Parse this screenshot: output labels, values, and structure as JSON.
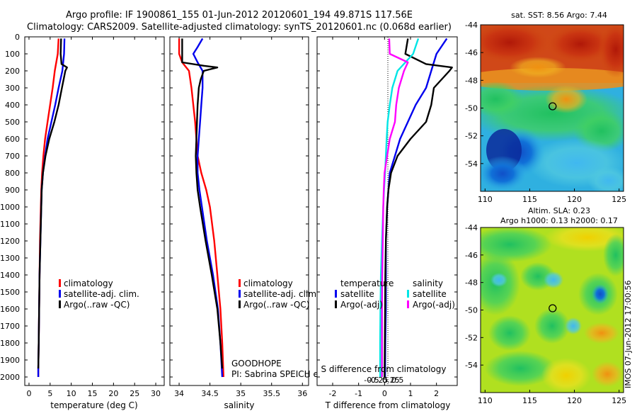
{
  "title": {
    "line1": "Argo profile: IF 1900861_155 01-Jun-2012 20120601_194 49.871S 117.56E",
    "line2": "Climatology: CARS2009. Satellite-adjusted climatology: synTS_20120601.nc (0.068d earlier)"
  },
  "depth_ticks": [
    "0",
    "100",
    "200",
    "300",
    "400",
    "500",
    "600",
    "700",
    "800",
    "900",
    "1000",
    "1100",
    "1200",
    "1300",
    "1400",
    "1500",
    "1600",
    "1700",
    "1800",
    "1900",
    "2000"
  ],
  "colors": {
    "climatology": "#ff0000",
    "satellite": "#0000ee",
    "argo": "#000000",
    "sal_satellite": "#00e5e5",
    "sal_argo": "#ff00ff"
  },
  "chart_data": [
    {
      "type": "line",
      "xlabel": "temperature (deg C)",
      "ylabel": "",
      "xlim": [
        -1,
        32
      ],
      "ylim": [
        2050,
        0
      ],
      "xticks": [
        "0",
        "5",
        "10",
        "15",
        "20",
        "25",
        "30"
      ],
      "legend": [
        "climatology",
        "satellite-adj. clim.",
        "Argo(..raw -QC)"
      ],
      "series": [
        {
          "name": "climatology",
          "depth": [
            10,
            100,
            200,
            300,
            400,
            500,
            600,
            700,
            800,
            900,
            1000,
            1200,
            1400,
            1600,
            1800,
            1950,
            2000
          ],
          "values": [
            7.0,
            6.8,
            6.1,
            5.6,
            5.0,
            4.4,
            3.8,
            3.4,
            3.1,
            2.9,
            2.8,
            2.6,
            2.5,
            2.4,
            2.3,
            2.2,
            2.2
          ]
        },
        {
          "name": "satellite-adj. clim.",
          "depth": [
            10,
            100,
            200,
            300,
            400,
            500,
            600,
            700,
            800,
            900,
            1000,
            1200,
            1400,
            1600,
            1800,
            1950,
            2000
          ],
          "values": [
            8.4,
            8.3,
            7.9,
            7.0,
            6.2,
            5.3,
            4.4,
            3.8,
            3.3,
            3.0,
            2.9,
            2.7,
            2.5,
            2.4,
            2.3,
            2.2,
            2.2
          ]
        },
        {
          "name": "Argo(..raw -QC)",
          "depth": [
            10,
            100,
            160,
            180,
            200,
            300,
            400,
            500,
            600,
            700,
            800,
            900,
            1000,
            1200,
            1400,
            1600,
            1800,
            1950
          ],
          "values": [
            7.6,
            7.5,
            7.7,
            9.0,
            8.6,
            7.8,
            7.0,
            6.0,
            4.8,
            3.9,
            3.3,
            3.0,
            2.9,
            2.7,
            2.5,
            2.4,
            2.3,
            2.2
          ]
        }
      ]
    },
    {
      "type": "line",
      "xlabel": "salinity",
      "ylabel": "",
      "xlim": [
        33.85,
        36.1
      ],
      "ylim": [
        2050,
        0
      ],
      "xticks": [
        "34",
        "34.5",
        "35",
        "35.5",
        "36"
      ],
      "legend": [
        "climatology",
        "satellite-adj. clim.",
        "Argo(..raw -QC)"
      ],
      "series": [
        {
          "name": "climatology",
          "depth": [
            10,
            100,
            150,
            200,
            300,
            400,
            500,
            600,
            700,
            800,
            900,
            1000,
            1200,
            1400,
            1600,
            1800,
            2000
          ],
          "values": [
            34.0,
            34.0,
            34.05,
            34.16,
            34.2,
            34.23,
            34.26,
            34.28,
            34.3,
            34.36,
            34.44,
            34.5,
            34.57,
            34.62,
            34.67,
            34.7,
            34.72
          ]
        },
        {
          "name": "satellite-adj. clim.",
          "depth": [
            10,
            60,
            100,
            150,
            200,
            300,
            400,
            500,
            600,
            700,
            800,
            900,
            1000,
            1200,
            1400,
            1600,
            1800,
            2000
          ],
          "values": [
            34.38,
            34.3,
            34.23,
            34.3,
            34.38,
            34.38,
            34.36,
            34.34,
            34.32,
            34.3,
            34.3,
            34.33,
            34.37,
            34.45,
            34.55,
            34.63,
            34.67,
            34.7
          ]
        },
        {
          "name": "Argo(..raw -QC)",
          "depth": [
            10,
            100,
            150,
            170,
            180,
            200,
            250,
            300,
            400,
            500,
            600,
            700,
            800,
            900,
            1000,
            1200,
            1400,
            1600,
            1800,
            1950
          ],
          "values": [
            34.05,
            34.05,
            34.05,
            34.4,
            34.62,
            34.4,
            34.35,
            34.32,
            34.3,
            34.29,
            34.28,
            34.27,
            34.28,
            34.3,
            34.34,
            34.43,
            34.53,
            34.62,
            34.67,
            34.7
          ]
        }
      ]
    },
    {
      "type": "line",
      "xlabel": "T difference from climatology",
      "xlabel_top": "S difference from climatology",
      "ylabel": "",
      "xlim": [
        -2.6,
        2.8
      ],
      "ylim": [
        2050,
        0
      ],
      "xticks": [
        "-2",
        "-1",
        "0",
        "1",
        "2"
      ],
      "xticks_sal": [
        "-0.5",
        "-0.25",
        "0",
        "0.25",
        "0.5"
      ],
      "legend_headers": [
        "temperature",
        "salinity"
      ],
      "legend": [
        "satellite",
        "Argo(-adj)",
        "satellite",
        "Argo(-adj)"
      ],
      "series": [
        {
          "name": "satellite",
          "depth": [
            10,
            100,
            200,
            300,
            400,
            500,
            600,
            700,
            800,
            900,
            1000,
            1200,
            1400,
            1600,
            1800,
            2000
          ],
          "values": [
            2.4,
            2.0,
            1.8,
            1.6,
            1.2,
            0.9,
            0.6,
            0.4,
            0.2,
            0.15,
            0.1,
            0.05,
            0.05,
            0.05,
            0.03,
            0.02
          ]
        },
        {
          "name": "Argo(-adj)",
          "depth": [
            10,
            100,
            160,
            180,
            200,
            300,
            400,
            500,
            600,
            700,
            800,
            900,
            1000,
            1200,
            1400,
            1600,
            1800,
            2000
          ],
          "values": [
            0.9,
            0.8,
            1.6,
            2.6,
            2.5,
            1.9,
            1.8,
            1.6,
            1.0,
            0.5,
            0.25,
            0.15,
            0.1,
            0.05,
            0.03,
            0.02,
            0.01,
            0.0
          ]
        },
        {
          "name": "satellite",
          "depth": [
            10,
            100,
            150,
            200,
            300,
            400,
            500,
            600,
            700,
            800,
            900,
            1000,
            1200,
            1400,
            1600,
            1800,
            2000
          ],
          "values": [
            1.3,
            1.1,
            0.8,
            0.5,
            0.3,
            0.2,
            0.12,
            0.08,
            0.05,
            0.02,
            -0.02,
            -0.05,
            -0.1,
            -0.14,
            -0.16,
            -0.17,
            -0.17
          ]
        },
        {
          "name": "Argo(-adj)",
          "depth": [
            10,
            100,
            150,
            200,
            300,
            400,
            500,
            600,
            700,
            800,
            900,
            1000,
            1200,
            1400,
            1600,
            1800,
            2000
          ],
          "values": [
            0.18,
            0.2,
            0.9,
            0.75,
            0.55,
            0.45,
            0.4,
            0.2,
            0.1,
            0.0,
            -0.03,
            -0.05,
            -0.07,
            -0.09,
            -0.1,
            -0.1,
            -0.1
          ]
        }
      ]
    },
    {
      "type": "heatmap",
      "title": "sat. SST: 8.56 Argo: 7.44",
      "xlim": [
        109.5,
        125.5
      ],
      "ylim": [
        -56,
        -44
      ],
      "xticks": [
        "110",
        "115",
        "120",
        "125"
      ],
      "yticks": [
        "-44",
        "-46",
        "-48",
        "-50",
        "-52",
        "-54"
      ],
      "marker": {
        "lon": 117.56,
        "lat": -49.871
      }
    },
    {
      "type": "heatmap",
      "title": "Altim. SLA: 0.23",
      "subtitle": "Argo h1000: 0.13 h2000: 0.17",
      "xlim": [
        109.5,
        125.5
      ],
      "ylim": [
        -56,
        -44
      ],
      "xticks": [
        "110",
        "115",
        "120",
        "125"
      ],
      "yticks": [
        "-44",
        "-46",
        "-48",
        "-50",
        "-52",
        "-54"
      ],
      "marker": {
        "lon": 117.56,
        "lat": -49.871
      }
    }
  ],
  "annotations": {
    "program": "GOODHOPE",
    "pi": "PI: Sabrina SPEICH et Michel ARHAN",
    "side_label": "IMOS 07-Jun-2012 17:00:56"
  }
}
